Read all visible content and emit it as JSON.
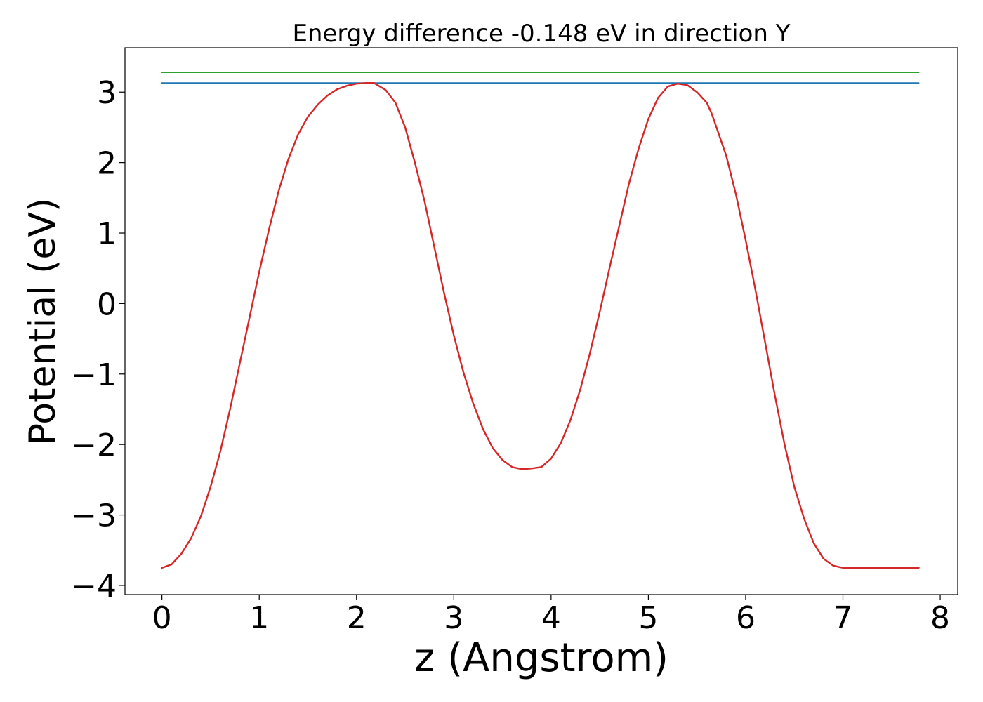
{
  "chart_data": {
    "type": "line",
    "title": "Energy difference -0.148 eV in direction Y",
    "xlabel": "z (Angstrom)",
    "ylabel": "Potential (eV)",
    "xlim": [
      -0.38,
      8.18
    ],
    "ylim": [
      -4.13,
      3.63
    ],
    "x_ticks": [
      0,
      1,
      2,
      3,
      4,
      5,
      6,
      7,
      8
    ],
    "x_tick_labels": [
      "0",
      "1",
      "2",
      "3",
      "4",
      "5",
      "6",
      "7",
      "8"
    ],
    "y_ticks": [
      3,
      2,
      1,
      0,
      -1,
      -2,
      -3,
      -4
    ],
    "y_tick_labels": [
      "3",
      "2",
      "1",
      "0",
      "−1",
      "−2",
      "−3",
      "−4"
    ],
    "grid": false,
    "legend": "none",
    "series": [
      {
        "color": "#d62728",
        "x": [
          0.0,
          0.1,
          0.2,
          0.3,
          0.4,
          0.5,
          0.6,
          0.7,
          0.8,
          0.9,
          1.0,
          1.1,
          1.2,
          1.3,
          1.4,
          1.5,
          1.6,
          1.7,
          1.8,
          1.9,
          2.0,
          2.1,
          2.18,
          2.3,
          2.4,
          2.5,
          2.6,
          2.7,
          2.8,
          2.9,
          3.0,
          3.1,
          3.2,
          3.3,
          3.4,
          3.5,
          3.6,
          3.7,
          3.8,
          3.9,
          4.0,
          4.1,
          4.2,
          4.3,
          4.4,
          4.5,
          4.6,
          4.7,
          4.8,
          4.9,
          5.0,
          5.1,
          5.2,
          5.3,
          5.4,
          5.5,
          5.6,
          5.65,
          5.7,
          5.8,
          5.9,
          6.0,
          6.1,
          6.2,
          6.3,
          6.4,
          6.5,
          6.6,
          6.7,
          6.8,
          6.9,
          7.0,
          7.1,
          7.2,
          7.3,
          7.4,
          7.5,
          7.6,
          7.7,
          7.78
        ],
        "y": [
          -3.75,
          -3.7,
          -3.55,
          -3.33,
          -3.02,
          -2.6,
          -2.1,
          -1.5,
          -0.85,
          -0.2,
          0.45,
          1.05,
          1.6,
          2.05,
          2.4,
          2.65,
          2.82,
          2.95,
          3.04,
          3.09,
          3.12,
          3.13,
          3.13,
          3.03,
          2.85,
          2.5,
          2.0,
          1.45,
          0.8,
          0.15,
          -0.45,
          -0.98,
          -1.42,
          -1.78,
          -2.05,
          -2.22,
          -2.32,
          -2.35,
          -2.34,
          -2.32,
          -2.2,
          -1.98,
          -1.65,
          -1.22,
          -0.7,
          -0.12,
          0.5,
          1.1,
          1.7,
          2.2,
          2.62,
          2.92,
          3.08,
          3.12,
          3.1,
          3.0,
          2.85,
          2.7,
          2.5,
          2.1,
          1.55,
          0.9,
          0.2,
          -0.55,
          -1.3,
          -2.0,
          -2.6,
          -3.05,
          -3.4,
          -3.62,
          -3.72,
          -3.75,
          -3.75,
          -3.75,
          -3.75,
          -3.75,
          -3.75,
          -3.75,
          -3.75,
          -3.75
        ]
      },
      {
        "color": "#1f77b4",
        "x": [
          0.0,
          7.78
        ],
        "y": [
          3.13,
          3.13
        ]
      },
      {
        "color": "#2ca02c",
        "x": [
          0.0,
          7.78
        ],
        "y": [
          3.28,
          3.28
        ]
      }
    ]
  }
}
